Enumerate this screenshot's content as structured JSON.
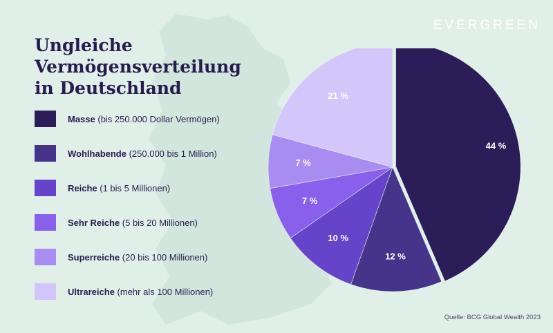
{
  "brand": "EVERGREEN",
  "title": {
    "line1": "Ungleiche Vermögensverteilung",
    "line2": "in Deutschland"
  },
  "source": "Quelle: BCG Global Wealth 2023",
  "colors": {
    "background": "#e1efe9",
    "map": "#d3e6dd",
    "text": "#261c4d"
  },
  "legend": [
    {
      "name": "Masse",
      "detail": " (bis 250.000 Dollar Vermögen)",
      "color": "#2a1d58"
    },
    {
      "name": "Wohlhabende",
      "detail": " (250.000 bis 1 Million)",
      "color": "#46338a"
    },
    {
      "name": "Reiche",
      "detail": " (1 bis 5 Millionen)",
      "color": "#6644c9"
    },
    {
      "name": "Sehr Reiche",
      "detail": " (5 bis 20 Millionen)",
      "color": "#8860ec"
    },
    {
      "name": "Superreiche",
      "detail": " (20 bis 100 Millionen)",
      "color": "#a98cf2"
    },
    {
      "name": "Ultrareiche",
      "detail": " (mehr als 100 Millionen)",
      "color": "#d3c6fb"
    }
  ],
  "chart_data": {
    "type": "pie",
    "categories": [
      "Masse",
      "Wohlhabende",
      "Reiche",
      "Sehr Reiche",
      "Superreiche",
      "Ultrareiche"
    ],
    "values": [
      44,
      12,
      10,
      7,
      7,
      21
    ],
    "labels": [
      "44 %",
      "12 %",
      "10 %",
      "7 %",
      "7 %",
      "21 %"
    ],
    "colors": [
      "#2a1d58",
      "#46338a",
      "#6644c9",
      "#8860ec",
      "#a98cf2",
      "#d3c6fb"
    ],
    "title": "Ungleiche Vermögensverteilung in Deutschland",
    "legend": "left",
    "exploded": [
      "Masse"
    ]
  }
}
